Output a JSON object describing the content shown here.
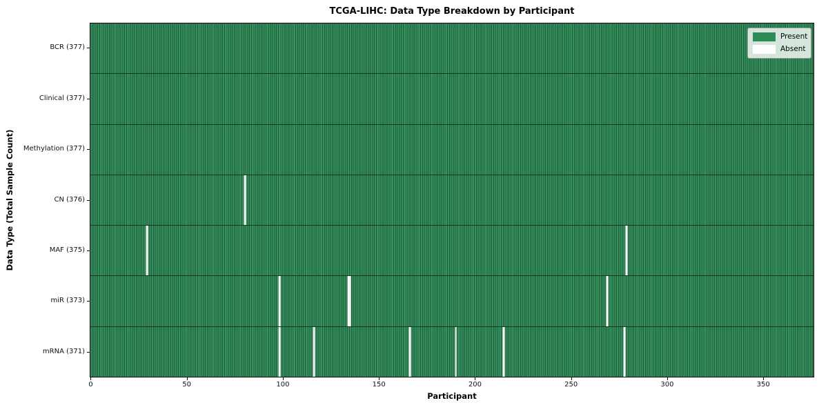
{
  "chart_data": {
    "type": "heatmap",
    "title": "TCGA-LIHC: Data Type Breakdown by Participant",
    "xlabel": "Participant",
    "ylabel": "Data Type (Total Sample Count)",
    "n_participants": 377,
    "x_ticks": [
      0,
      50,
      100,
      150,
      200,
      250,
      300,
      350
    ],
    "xlim": [
      -0.5,
      376.5
    ],
    "grid": false,
    "legend_position": "upper right",
    "legend": [
      {
        "label": "Present",
        "color": "#2e8b57"
      },
      {
        "label": "Absent",
        "color": "#ffffff"
      }
    ],
    "rows": [
      {
        "label": "BCR (377)",
        "name": "BCR",
        "total": 377,
        "absent_participants": []
      },
      {
        "label": "Clinical (377)",
        "name": "Clinical",
        "total": 377,
        "absent_participants": []
      },
      {
        "label": "Methylation (377)",
        "name": "Methylation",
        "total": 377,
        "absent_participants": []
      },
      {
        "label": "CN (376)",
        "name": "CN",
        "total": 376,
        "absent_participants": [
          80
        ]
      },
      {
        "label": "MAF (375)",
        "name": "MAF",
        "total": 375,
        "absent_participants": [
          29,
          279
        ]
      },
      {
        "label": "miR (373)",
        "name": "miR",
        "total": 373,
        "absent_participants": [
          98,
          134,
          135,
          269
        ]
      },
      {
        "label": "mRNA (371)",
        "name": "mRNA",
        "total": 371,
        "absent_participants": [
          98,
          116,
          166,
          190,
          215,
          278
        ]
      }
    ],
    "colors": {
      "present": "#2e8b57",
      "present_stripe_light": "#36915f",
      "present_stripe_dark": "#1d5a38",
      "absent": "#ffffff",
      "row_divider": "#143122",
      "plot_border": "#000000"
    }
  }
}
